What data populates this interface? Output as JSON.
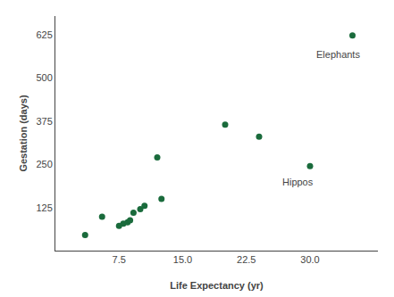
{
  "chart_data": {
    "type": "scatter",
    "x": [
      3.5,
      5.5,
      7.5,
      8,
      8.5,
      8.8,
      9.2,
      10,
      10.5,
      12,
      12.5,
      20,
      24,
      30,
      35
    ],
    "y": [
      45,
      98,
      72,
      78,
      82,
      88,
      110,
      120,
      130,
      270,
      150,
      365,
      330,
      245,
      624
    ],
    "color": "#1a6b3c",
    "marker": "circle",
    "xlabel": "Life Expectancy (yr)",
    "ylabel": "Gestation (days)",
    "xlim": [
      0,
      38
    ],
    "ylim": [
      0,
      680
    ],
    "xticks": [
      7.5,
      {
        "value": 15,
        "label": "15.0"
      },
      22.5,
      {
        "value": 30,
        "label": "30.0"
      }
    ],
    "yticks": [
      125,
      250,
      375,
      500,
      625
    ],
    "grid": false,
    "annotations": [
      {
        "text": "Elephants",
        "x": 30.5,
        "y": 590
      },
      {
        "text": "Hippos",
        "x": 26.5,
        "y": 220
      }
    ]
  }
}
